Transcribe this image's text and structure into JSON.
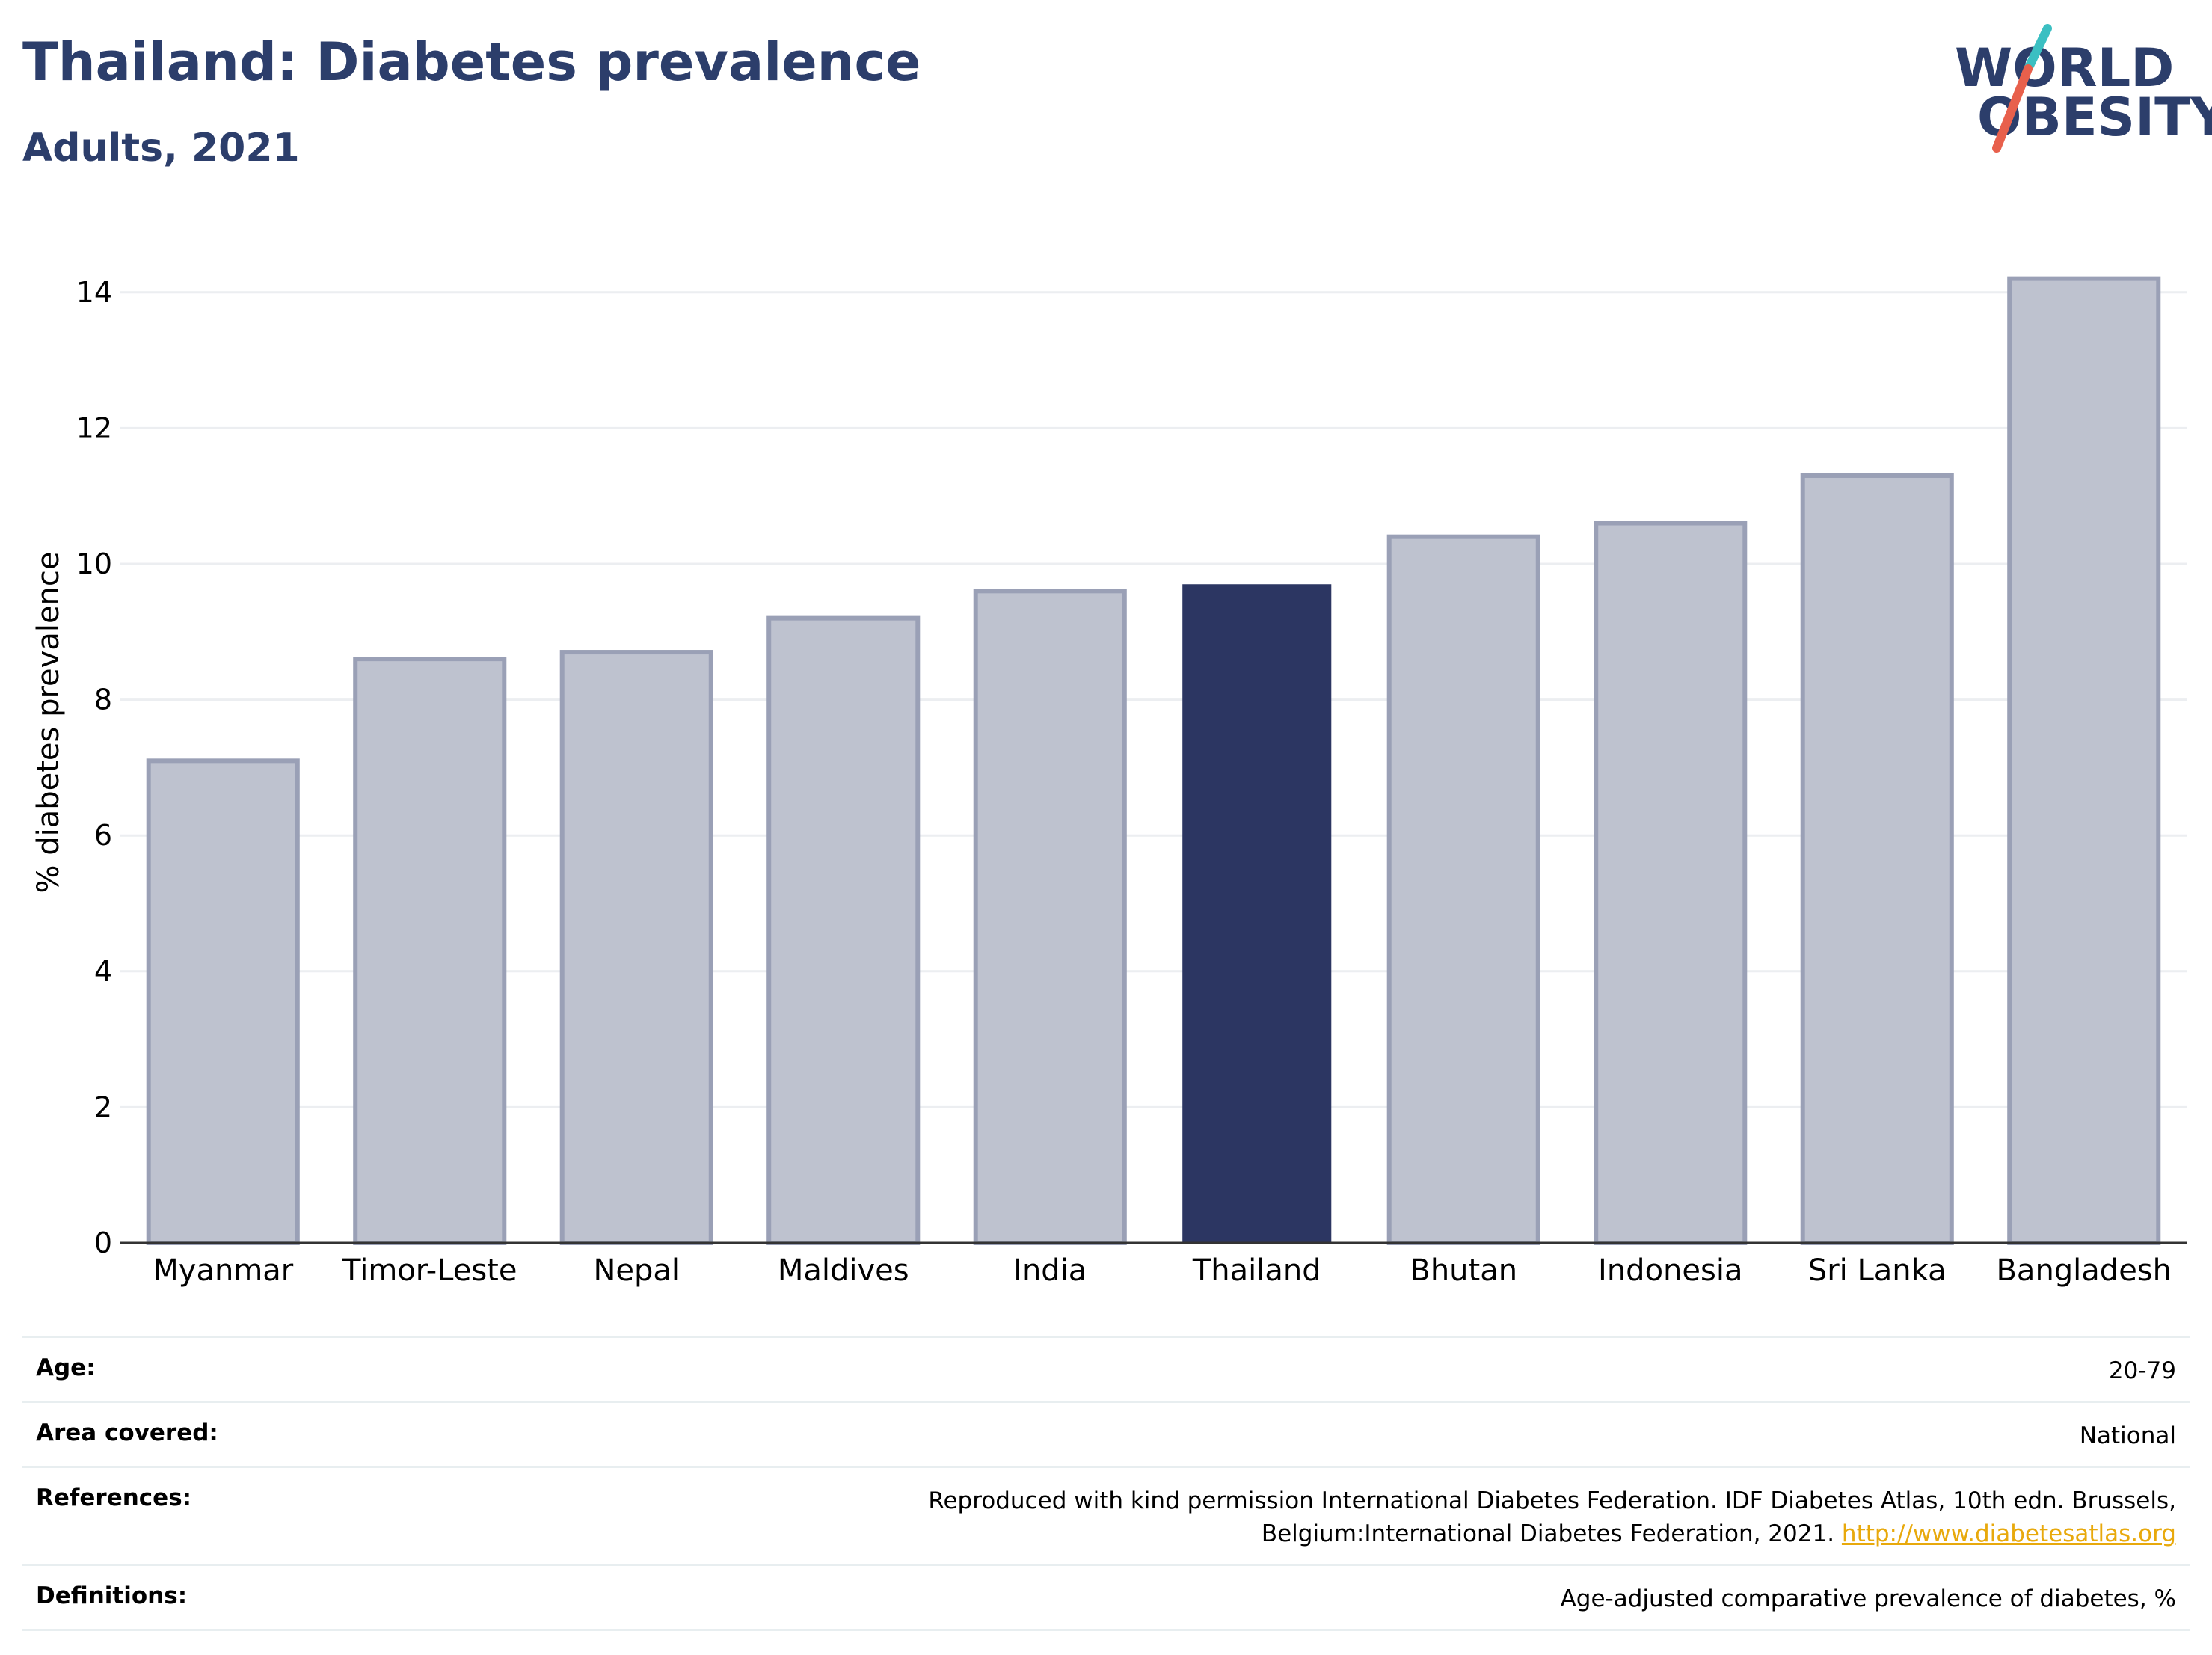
{
  "header": {
    "title": "Thailand: Diabetes prevalence",
    "subtitle": "Adults, 2021"
  },
  "logo": {
    "line1": "WORLD",
    "line2": "OBESITY",
    "accent_colors": [
      "#3bbfc2",
      "#e8604c"
    ]
  },
  "chart_data": {
    "type": "bar",
    "categories": [
      "Myanmar",
      "Timor-Leste",
      "Nepal",
      "Maldives",
      "India",
      "Thailand",
      "Bhutan",
      "Indonesia",
      "Sri Lanka",
      "Bangladesh"
    ],
    "values": [
      7.1,
      8.6,
      8.7,
      9.2,
      9.6,
      9.7,
      10.4,
      10.6,
      11.3,
      14.2
    ],
    "highlight": "Thailand",
    "ylabel": "% diabetes prevalence",
    "xlabel": "",
    "ylim": [
      0,
      15
    ],
    "yticks": [
      0,
      2,
      4,
      6,
      8,
      10,
      12,
      14
    ],
    "grid": true,
    "colors": {
      "bar": "#bec2cf",
      "bar_border": "#9aa0b6",
      "highlight": "#2c3662",
      "gridline": "#eceef1"
    }
  },
  "meta": [
    {
      "label": "Age:",
      "value": "20-79"
    },
    {
      "label": "Area covered:",
      "value": "National"
    },
    {
      "label": "References:",
      "value": "Reproduced with kind permission International Diabetes Federation.  IDF Diabetes Atlas, 10th edn. Brussels, Belgium:International Diabetes Federation, 2021.",
      "link": "http://www.diabetesatlas.org"
    },
    {
      "label": "Definitions:",
      "value": "Age-adjusted comparative prevalence of diabetes, %"
    }
  ]
}
